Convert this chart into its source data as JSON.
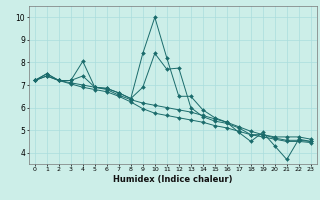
{
  "xlabel": "Humidex (Indice chaleur)",
  "xlim": [
    -0.5,
    23.5
  ],
  "ylim": [
    3.5,
    10.5
  ],
  "xticks": [
    0,
    1,
    2,
    3,
    4,
    5,
    6,
    7,
    8,
    9,
    10,
    11,
    12,
    13,
    14,
    15,
    16,
    17,
    18,
    19,
    20,
    21,
    22,
    23
  ],
  "yticks": [
    4,
    5,
    6,
    7,
    8,
    9,
    10
  ],
  "bg_color": "#cceee8",
  "line_color": "#1a6b6b",
  "grid_color": "#aadddd",
  "series": [
    {
      "x": [
        0,
        1,
        2,
        3,
        4,
        5,
        6,
        7,
        8,
        9,
        10,
        11,
        12,
        13,
        14,
        15,
        16,
        17,
        18,
        19,
        20,
        21,
        22,
        23
      ],
      "y": [
        7.2,
        7.5,
        7.2,
        7.2,
        8.05,
        6.9,
        6.85,
        6.65,
        6.4,
        8.4,
        10.0,
        8.2,
        6.5,
        6.5,
        5.9,
        5.55,
        5.35,
        4.9,
        4.5,
        4.9,
        4.3,
        3.7,
        4.6,
        4.5
      ]
    },
    {
      "x": [
        0,
        1,
        2,
        3,
        4,
        5,
        6,
        7,
        8,
        9,
        10,
        11,
        12,
        13,
        14,
        15,
        16,
        17,
        18,
        19,
        20,
        21,
        22,
        23
      ],
      "y": [
        7.2,
        7.5,
        7.2,
        7.2,
        7.4,
        6.9,
        6.85,
        6.65,
        6.4,
        6.9,
        8.4,
        7.7,
        7.75,
        6.0,
        5.6,
        5.4,
        5.3,
        5.1,
        4.8,
        4.8,
        4.7,
        4.7,
        4.7,
        4.6
      ]
    },
    {
      "x": [
        0,
        1,
        2,
        3,
        4,
        5,
        6,
        7,
        8,
        9,
        10,
        11,
        12,
        13,
        14,
        15,
        16,
        17,
        18,
        19,
        20,
        21,
        22,
        23
      ],
      "y": [
        7.2,
        7.4,
        7.2,
        7.1,
        7.0,
        6.9,
        6.8,
        6.55,
        6.35,
        6.2,
        6.1,
        6.0,
        5.9,
        5.8,
        5.65,
        5.5,
        5.35,
        5.15,
        4.95,
        4.8,
        4.65,
        4.55,
        4.55,
        4.5
      ]
    },
    {
      "x": [
        0,
        1,
        2,
        3,
        4,
        5,
        6,
        7,
        8,
        9,
        10,
        11,
        12,
        13,
        14,
        15,
        16,
        17,
        18,
        19,
        20,
        21,
        22,
        23
      ],
      "y": [
        7.2,
        7.4,
        7.2,
        7.05,
        6.9,
        6.8,
        6.7,
        6.5,
        6.25,
        5.95,
        5.75,
        5.65,
        5.55,
        5.45,
        5.35,
        5.2,
        5.1,
        4.95,
        4.8,
        4.7,
        4.6,
        4.5,
        4.5,
        4.45
      ]
    }
  ]
}
